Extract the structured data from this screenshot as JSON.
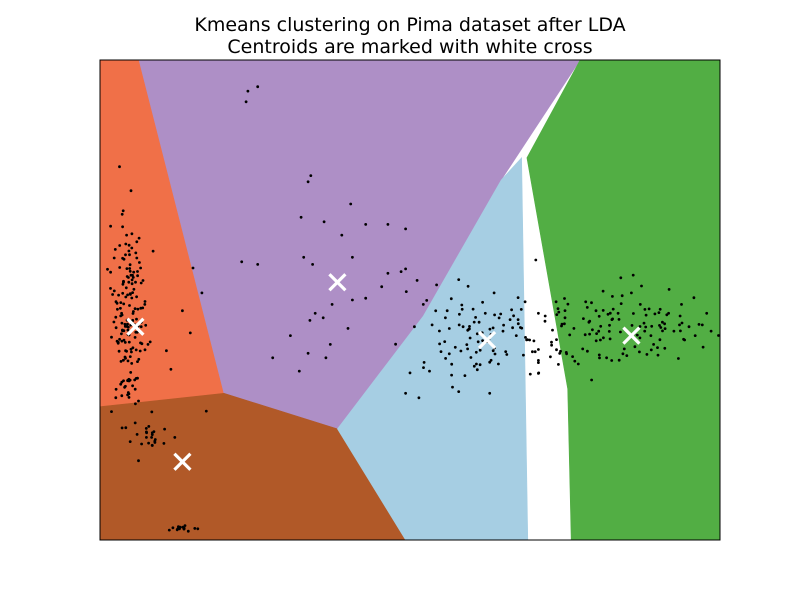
{
  "chart_data": {
    "type": "scatter",
    "title": "Kmeans clustering on Pima dataset after LDA",
    "subtitle": "Centroids are marked with white cross",
    "xlabel": "",
    "ylabel": "",
    "xlim": [
      -3.1,
      3.9
    ],
    "ylim": [
      -2.6,
      2.8
    ],
    "grid": false,
    "axis_ticks": false,
    "regions": [
      {
        "color": "#f07048",
        "points": [
          [
            -3.1,
            2.8
          ],
          [
            -2.66,
            2.8
          ],
          [
            -1.7,
            -0.95
          ],
          [
            -3.1,
            -1.1
          ]
        ]
      },
      {
        "color": "#ae8fc6",
        "points": [
          [
            -2.66,
            2.8
          ],
          [
            2.32,
            2.8
          ],
          [
            1.43,
            1.45
          ],
          [
            0.55,
            -0.08
          ],
          [
            -0.42,
            -1.35
          ],
          [
            -1.7,
            -0.95
          ]
        ]
      },
      {
        "color": "#b15928",
        "points": [
          [
            -3.1,
            -1.1
          ],
          [
            -1.7,
            -0.95
          ],
          [
            -0.42,
            -1.35
          ],
          [
            0.35,
            -2.6
          ],
          [
            -3.1,
            -2.6
          ]
        ]
      },
      {
        "color": "#a6cee3",
        "points": [
          [
            -0.42,
            -1.35
          ],
          [
            0.55,
            -0.08
          ],
          [
            1.43,
            1.45
          ],
          [
            1.66,
            1.7
          ],
          [
            1.73,
            -2.6
          ],
          [
            0.35,
            -2.6
          ]
        ]
      },
      {
        "color": "#52ae44",
        "points": [
          [
            2.32,
            2.8
          ],
          [
            3.9,
            2.8
          ],
          [
            3.9,
            -2.6
          ],
          [
            2.22,
            -2.6
          ],
          [
            2.18,
            -0.9
          ],
          [
            1.72,
            1.7
          ]
        ]
      }
    ],
    "centroids": [
      {
        "x": -2.7,
        "y": -0.2
      },
      {
        "x": -2.17,
        "y": -1.72
      },
      {
        "x": -0.42,
        "y": 0.3
      },
      {
        "x": 1.27,
        "y": -0.35
      },
      {
        "x": 2.9,
        "y": -0.3
      }
    ],
    "points": [
      [
        -1.43,
        2.45
      ],
      [
        -1.45,
        2.33
      ],
      [
        -1.32,
        2.5
      ],
      [
        0.05,
        2.9
      ],
      [
        -2.98,
        0.93
      ],
      [
        -2.88,
        1.6
      ],
      [
        -2.8,
        0.83
      ],
      [
        -2.75,
        1.33
      ],
      [
        -2.5,
        0.65
      ],
      [
        -2.17,
        -0.02
      ],
      [
        -2.05,
        0.46
      ],
      [
        -1.95,
        0.18
      ],
      [
        -2.08,
        -0.27
      ],
      [
        -2.35,
        -0.47
      ],
      [
        -2.3,
        -0.68
      ],
      [
        -2.63,
        -1.52
      ],
      [
        -0.72,
        1.5
      ],
      [
        -0.75,
        1.43
      ],
      [
        -0.83,
        1.03
      ],
      [
        -0.57,
        0.98
      ],
      [
        -0.8,
        0.58
      ],
      [
        -0.7,
        0.5
      ],
      [
        -1.5,
        0.53
      ],
      [
        -1.32,
        0.5
      ],
      [
        -0.73,
        -0.13
      ],
      [
        -0.58,
        -0.1
      ],
      [
        -0.67,
        -0.05
      ],
      [
        -0.48,
        0.05
      ],
      [
        -0.25,
        0.1
      ],
      [
        -0.27,
        1.18
      ],
      [
        -0.37,
        0.83
      ],
      [
        -0.1,
        0.95
      ],
      [
        0.15,
        0.95
      ],
      [
        0.35,
        0.9
      ],
      [
        -0.25,
        0.58
      ],
      [
        0.35,
        0.45
      ],
      [
        0.08,
        0.25
      ],
      [
        -0.1,
        0.12
      ],
      [
        -0.3,
        -0.22
      ],
      [
        -0.5,
        -0.4
      ],
      [
        -0.75,
        -0.5
      ],
      [
        -0.95,
        -0.3
      ],
      [
        -1.15,
        -0.55
      ],
      [
        -0.55,
        -0.55
      ],
      [
        -0.85,
        -0.7
      ],
      [
        -1.9,
        -1.15
      ],
      [
        0.15,
        0.4
      ],
      [
        0.3,
        0.42
      ],
      [
        0.48,
        0.32
      ],
      [
        0.55,
        0.05
      ],
      [
        0.7,
        0.27
      ],
      [
        0.82,
        -0.02
      ],
      [
        0.95,
        0.33
      ],
      [
        0.65,
        -0.18
      ],
      [
        0.45,
        -0.2
      ],
      [
        0.75,
        -0.48
      ],
      [
        1.0,
        -0.2
      ],
      [
        1.05,
        -0.45
      ],
      [
        1.18,
        -0.15
      ],
      [
        1.25,
        -0.05
      ],
      [
        1.35,
        0.18
      ],
      [
        1.45,
        -0.25
      ],
      [
        1.53,
        -0.12
      ],
      [
        1.6,
        -0.3
      ],
      [
        1.48,
        -0.48
      ],
      [
        1.3,
        -0.6
      ],
      [
        1.15,
        -0.62
      ],
      [
        1.02,
        -0.75
      ],
      [
        0.88,
        -0.88
      ],
      [
        0.62,
        -0.7
      ],
      [
        0.4,
        -0.72
      ],
      [
        0.8,
        -0.1
      ],
      [
        1.7,
        0.08
      ],
      [
        1.75,
        -0.35
      ],
      [
        1.68,
        -0.52
      ],
      [
        1.85,
        -0.05
      ],
      [
        1.62,
        -0.12
      ],
      [
        1.85,
        -0.58
      ],
      [
        1.3,
        -0.95
      ],
      [
        0.95,
        -0.93
      ],
      [
        0.35,
        -0.95
      ],
      [
        0.5,
        -1.0
      ],
      [
        1.82,
        0.55
      ],
      [
        2.05,
        0.08
      ],
      [
        2.15,
        -0.1
      ],
      [
        2.25,
        -0.22
      ],
      [
        2.35,
        -0.45
      ],
      [
        2.42,
        -0.15
      ],
      [
        2.5,
        -0.02
      ],
      [
        2.55,
        -0.35
      ],
      [
        2.62,
        -0.55
      ],
      [
        2.68,
        -0.12
      ],
      [
        2.75,
        -0.05
      ],
      [
        2.82,
        -0.45
      ],
      [
        2.9,
        0.18
      ],
      [
        3.0,
        0.05
      ],
      [
        3.05,
        -0.25
      ],
      [
        3.12,
        -0.3
      ],
      [
        3.2,
        -0.52
      ],
      [
        3.25,
        -0.15
      ],
      [
        3.32,
        -0.05
      ],
      [
        3.38,
        -0.25
      ],
      [
        3.45,
        -0.08
      ],
      [
        3.5,
        -0.35
      ],
      [
        3.55,
        -0.2
      ],
      [
        3.62,
        -0.3
      ],
      [
        3.7,
        -0.18
      ],
      [
        3.75,
        -0.05
      ],
      [
        3.8,
        -0.25
      ],
      [
        2.3,
        -0.62
      ],
      [
        2.45,
        -0.8
      ],
      [
        2.78,
        0.35
      ],
      [
        2.92,
        0.38
      ],
      [
        2.58,
        0.2
      ],
      [
        3.1,
        0.0
      ],
      [
        3.15,
        -0.4
      ]
    ],
    "dense_clusters": [
      {
        "cx": -2.78,
        "cy": -0.1,
        "sx": 0.1,
        "sy": 0.6,
        "n": 170
      },
      {
        "cx": -2.2,
        "cy": -2.48,
        "sx": 0.12,
        "sy": 0.03,
        "n": 14
      },
      {
        "cx": 2.8,
        "cy": -0.25,
        "sx": 0.55,
        "sy": 0.22,
        "n": 110
      },
      {
        "cx": 1.2,
        "cy": -0.3,
        "sx": 0.45,
        "sy": 0.3,
        "n": 70
      },
      {
        "cx": -2.5,
        "cy": -1.45,
        "sx": 0.08,
        "sy": 0.1,
        "n": 20
      }
    ]
  }
}
